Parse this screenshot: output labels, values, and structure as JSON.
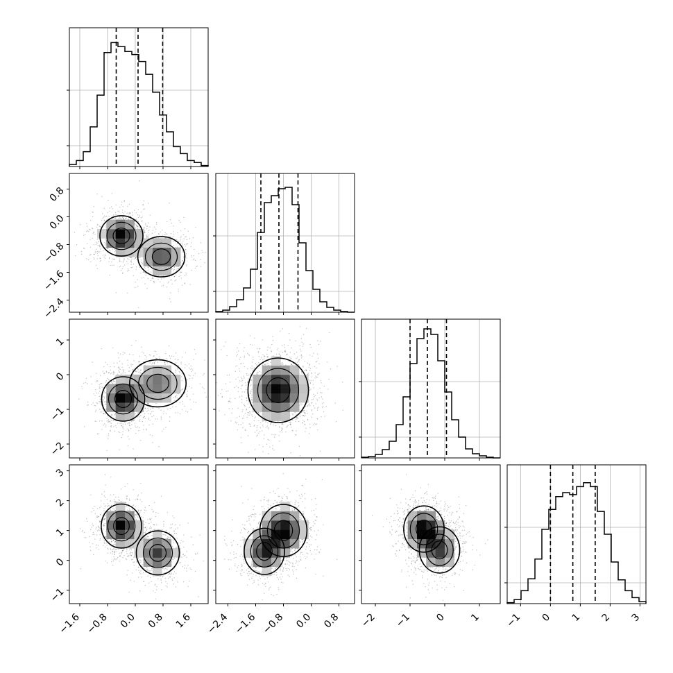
{
  "chart_data": {
    "type": "corner",
    "n_params": 4,
    "grid": true,
    "quantiles": [
      0.16,
      0.5,
      0.84
    ],
    "colors": {
      "line": "#000000",
      "grid": "#b0b0b0",
      "frame": "#000000",
      "density": "#000000",
      "background": "#ffffff"
    },
    "params": [
      {
        "range": [
          -1.9,
          2.1
        ],
        "ticks": [
          -1.6,
          -0.8,
          0.0,
          0.8,
          1.6
        ],
        "tick_labels": [
          "−1.6",
          "−0.8",
          "0.0",
          "0.8",
          "1.6"
        ],
        "quantile_values": [
          -0.55,
          0.08,
          0.79
        ]
      },
      {
        "range": [
          -2.75,
          1.25
        ],
        "ticks": [
          -2.4,
          -1.6,
          -0.8,
          0.0,
          0.8
        ],
        "tick_labels": [
          "−2.4",
          "−1.6",
          "−0.8",
          "0.0",
          "0.8"
        ],
        "quantile_values": [
          -1.45,
          -0.93,
          -0.38
        ]
      },
      {
        "range": [
          -2.4,
          1.6
        ],
        "ticks": [
          -2,
          -1,
          0,
          1
        ],
        "tick_labels": [
          "−2",
          "−1",
          "0",
          "1"
        ],
        "quantile_values": [
          -1.0,
          -0.5,
          0.05
        ]
      },
      {
        "range": [
          -1.45,
          3.2
        ],
        "ticks": [
          -1,
          0,
          1,
          2,
          3
        ],
        "tick_labels": [
          "−1",
          "0",
          "1",
          "2",
          "3"
        ],
        "quantile_values": [
          0.0,
          0.75,
          1.5
        ]
      }
    ],
    "histograms": [
      {
        "param": 0,
        "edges_start": -1.9,
        "bin_width": 0.2,
        "counts": [
          2,
          6,
          15,
          40,
          72,
          115,
          125,
          121,
          116,
          113,
          106,
          93,
          75,
          52,
          35,
          20,
          13,
          6,
          4,
          1
        ],
        "ylim": [
          0,
          140
        ]
      },
      {
        "param": 1,
        "edges_start": -2.75,
        "bin_width": 0.2,
        "counts": [
          1,
          3,
          8,
          18,
          35,
          62,
          115,
          158,
          168,
          178,
          180,
          155,
          100,
          60,
          33,
          15,
          7,
          3,
          1,
          0
        ],
        "ylim": [
          0,
          200
        ]
      },
      {
        "param": 2,
        "edges_start": -2.4,
        "bin_width": 0.2,
        "counts": [
          1,
          2,
          5,
          12,
          24,
          48,
          88,
          136,
          172,
          186,
          178,
          140,
          95,
          55,
          30,
          13,
          6,
          3,
          1,
          0
        ],
        "ylim": [
          0,
          200
        ]
      },
      {
        "param": 3,
        "edges_start": -1.45,
        "bin_width": 0.2325,
        "counts": [
          1,
          4,
          13,
          25,
          45,
          75,
          95,
          108,
          112,
          110,
          118,
          122,
          118,
          93,
          70,
          42,
          24,
          13,
          6,
          2
        ],
        "ylim": [
          0,
          140
        ]
      }
    ],
    "pairs": [
      {
        "row": 1,
        "col": 0,
        "peaks": [
          {
            "x": -0.4,
            "y": -0.55,
            "amp": 1.0,
            "sx": 0.32,
            "sy": 0.3
          },
          {
            "x": 0.75,
            "y": -1.15,
            "amp": 0.75,
            "sx": 0.35,
            "sy": 0.3
          }
        ]
      },
      {
        "row": 2,
        "col": 0,
        "peaks": [
          {
            "x": -0.35,
            "y": -0.7,
            "amp": 1.0,
            "sx": 0.32,
            "sy": 0.33
          },
          {
            "x": 0.65,
            "y": -0.25,
            "amp": 0.6,
            "sx": 0.42,
            "sy": 0.35
          }
        ]
      },
      {
        "row": 2,
        "col": 1,
        "peaks": [
          {
            "x": -0.95,
            "y": -0.45,
            "amp": 1.0,
            "sx": 0.45,
            "sy": 0.48
          }
        ]
      },
      {
        "row": 3,
        "col": 0,
        "peaks": [
          {
            "x": -0.4,
            "y": 1.15,
            "amp": 1.0,
            "sx": 0.3,
            "sy": 0.38
          },
          {
            "x": 0.65,
            "y": 0.25,
            "amp": 0.8,
            "sx": 0.32,
            "sy": 0.38
          }
        ]
      },
      {
        "row": 3,
        "col": 1,
        "peaks": [
          {
            "x": -1.35,
            "y": 0.3,
            "amp": 0.85,
            "sx": 0.3,
            "sy": 0.4
          },
          {
            "x": -0.8,
            "y": 1.0,
            "amp": 1.0,
            "sx": 0.35,
            "sy": 0.45
          }
        ]
      },
      {
        "row": 3,
        "col": 2,
        "peaks": [
          {
            "x": -0.6,
            "y": 1.05,
            "amp": 1.0,
            "sx": 0.3,
            "sy": 0.4
          },
          {
            "x": -0.15,
            "y": 0.35,
            "amp": 0.75,
            "sx": 0.3,
            "sy": 0.4
          }
        ]
      }
    ]
  }
}
